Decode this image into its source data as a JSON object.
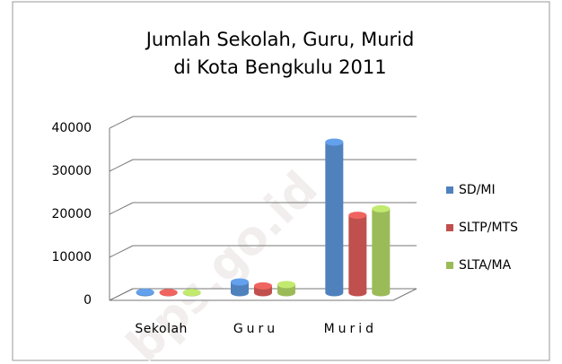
{
  "chart_data": {
    "type": "bar",
    "title": [
      "Jumlah Sekolah, Guru, Murid",
      "di Kota Bengkulu 2011"
    ],
    "watermark": "bps.go.id",
    "categories": [
      "Sekolah",
      "Guru",
      "Murid"
    ],
    "series": [
      {
        "name": "SD/MI",
        "color": "#4f81bd",
        "values": [
          150,
          2500,
          35000
        ]
      },
      {
        "name": "SLTP/MTS",
        "color": "#c0504d",
        "values": [
          60,
          1600,
          18000
        ]
      },
      {
        "name": "SLTA/MA",
        "color": "#9bbb59",
        "values": [
          70,
          1900,
          19500
        ]
      }
    ],
    "ylim": [
      0,
      40000
    ],
    "yticks": [
      0,
      10000,
      20000,
      30000,
      40000
    ],
    "grid": true,
    "legend": "right"
  }
}
